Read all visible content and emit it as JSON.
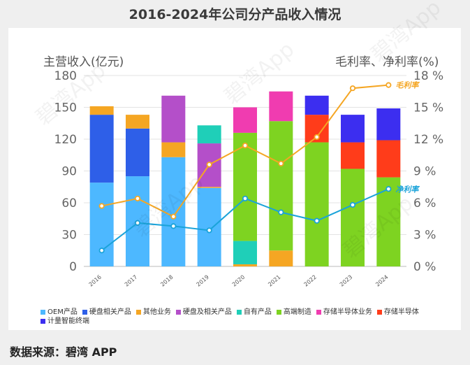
{
  "title": "2016-2024年公司分产品收入情况",
  "source": "数据来源：碧湾 APP",
  "watermark": "碧湾App",
  "chart_data": {
    "type": "bar",
    "stacked": true,
    "title": "2016-2024年公司分产品收入情况",
    "ylabel_left": "主营收入(亿元)",
    "ylabel_right": "毛利率、净利率(%)",
    "categories": [
      "2016",
      "2017",
      "2018",
      "2019",
      "2020",
      "2021",
      "2022",
      "2023",
      "2024"
    ],
    "ylim_left": [
      0,
      180
    ],
    "yticks_left": [
      0,
      30,
      60,
      90,
      120,
      150,
      180
    ],
    "ylim_right": [
      0,
      18
    ],
    "yticks_right": [
      "0 %",
      "3 %",
      "6 %",
      "9 %",
      "12 %",
      "15 %",
      "18 %"
    ],
    "yticks_right_values": [
      0,
      3,
      6,
      9,
      12,
      15,
      18
    ],
    "grid": true,
    "legend_position": "bottom",
    "series": [
      {
        "name": "OEM产品",
        "color": "#4db8ff",
        "values": [
          79,
          85,
          103,
          74,
          0,
          0,
          0,
          0,
          0
        ]
      },
      {
        "name": "硬盘相关产品",
        "color": "#2e5fe8",
        "values": [
          64,
          45,
          0,
          0,
          0,
          0,
          0,
          0,
          0
        ]
      },
      {
        "name": "其他业务",
        "color": "#f5a623",
        "values": [
          8,
          13,
          14,
          1,
          2,
          15,
          0,
          0,
          0
        ]
      },
      {
        "name": "硬盘及相关产品",
        "color": "#b44fc9",
        "values": [
          0,
          0,
          44,
          41,
          0,
          0,
          0,
          0,
          0
        ]
      },
      {
        "name": "自有产品",
        "color": "#1fcfb8",
        "values": [
          0,
          0,
          0,
          17,
          22,
          0,
          0,
          0,
          0
        ]
      },
      {
        "name": "高端制造",
        "color": "#7ed321",
        "values": [
          0,
          0,
          0,
          0,
          102,
          122,
          117,
          92,
          84
        ]
      },
      {
        "name": "存储半导体业务",
        "color": "#f03cb0",
        "values": [
          0,
          0,
          0,
          0,
          24,
          28,
          0,
          0,
          0
        ]
      },
      {
        "name": "存储半导体",
        "color": "#ff3c1a",
        "values": [
          0,
          0,
          0,
          0,
          0,
          0,
          26,
          25,
          35
        ]
      },
      {
        "name": "计量智能终端",
        "color": "#3c2ef0",
        "values": [
          0,
          0,
          0,
          0,
          0,
          0,
          18,
          26,
          30
        ]
      }
    ],
    "lines": [
      {
        "name": "毛利率",
        "color": "#f5a623",
        "values": [
          5.7,
          6.4,
          4.7,
          9.6,
          11.4,
          9.7,
          12.2,
          16.8,
          17.1
        ]
      },
      {
        "name": "净利率",
        "color": "#1aa3d9",
        "values": [
          1.5,
          4.1,
          3.8,
          3.4,
          6.4,
          5.1,
          4.3,
          5.8,
          7.3
        ]
      }
    ]
  }
}
